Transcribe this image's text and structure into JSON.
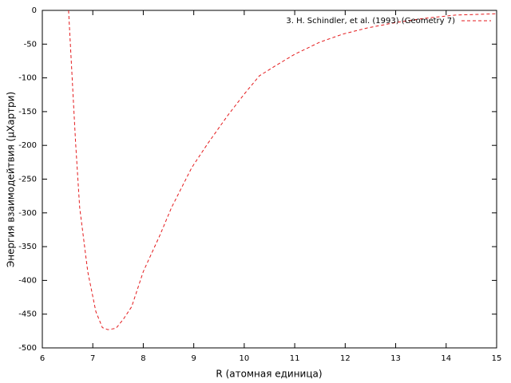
{
  "chart_data": {
    "type": "line",
    "xlabel": "R (атомная единица)",
    "ylabel": "Энергия взаимодейтвия (μХартри)",
    "xlim": [
      6,
      15
    ],
    "ylim": [
      -500,
      0
    ],
    "xticks": [
      6,
      7,
      8,
      9,
      10,
      11,
      12,
      13,
      14,
      15
    ],
    "yticks": [
      0,
      -50,
      -100,
      -150,
      -200,
      -250,
      -300,
      -350,
      -400,
      -450,
      -500
    ],
    "legend": "top-right",
    "grid": false,
    "series": [
      {
        "name": "3. H. Schindler, et al. (1993) (Geometry 7)",
        "color": "#e41a1c",
        "x": [
          6.52,
          6.66,
          6.74,
          6.9,
          7.06,
          7.19,
          7.3,
          7.46,
          7.61,
          7.77,
          8.0,
          8.33,
          8.56,
          8.96,
          9.28,
          9.67,
          10.0,
          10.3,
          10.62,
          11.0,
          11.5,
          11.96,
          12.44,
          13.0,
          13.55,
          14.18,
          15.0
        ],
        "values": [
          0,
          -197,
          -292,
          -387,
          -446,
          -470,
          -473,
          -471,
          -457,
          -439,
          -387,
          -333,
          -292,
          -233,
          -197,
          -156,
          -124,
          -97,
          -82,
          -65,
          -47,
          -35,
          -26,
          -18,
          -12,
          -7,
          -5
        ]
      }
    ]
  }
}
